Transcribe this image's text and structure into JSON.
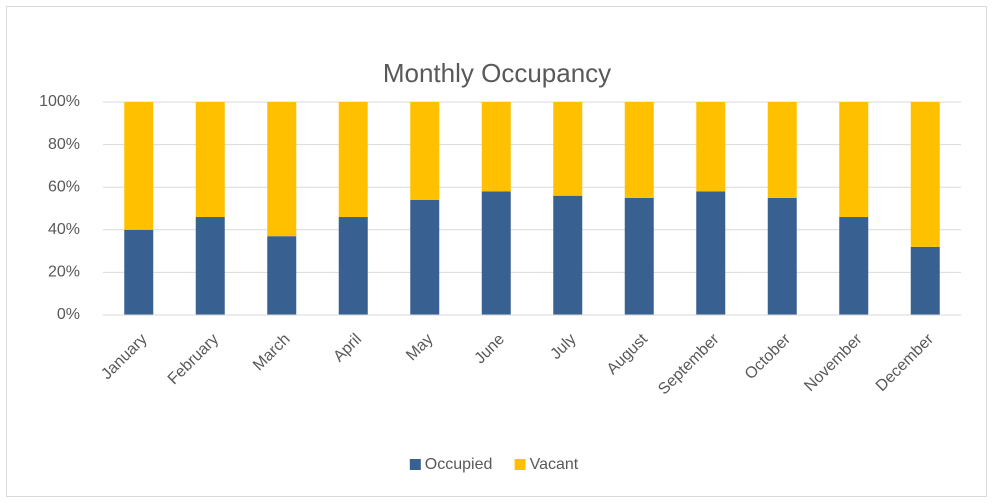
{
  "chart_data": {
    "type": "stacked-bar",
    "title": "Monthly Occupancy",
    "categories": [
      "January",
      "February",
      "March",
      "April",
      "May",
      "June",
      "July",
      "August",
      "September",
      "October",
      "November",
      "December"
    ],
    "series": [
      {
        "name": "Occupied",
        "color": "#386090",
        "values": [
          40,
          46,
          37,
          46,
          54,
          58,
          56,
          55,
          58,
          55,
          46,
          32
        ]
      },
      {
        "name": "Vacant",
        "color": "#ffc000",
        "values": [
          60,
          54,
          63,
          54,
          46,
          42,
          44,
          45,
          42,
          45,
          54,
          68
        ]
      }
    ],
    "ylim": [
      0,
      100
    ],
    "yticks": [
      {
        "value": 0,
        "label": "0%"
      },
      {
        "value": 20,
        "label": "20%"
      },
      {
        "value": 40,
        "label": "40%"
      },
      {
        "value": 60,
        "label": "60%"
      },
      {
        "value": 80,
        "label": "80%"
      },
      {
        "value": 100,
        "label": "100%"
      }
    ],
    "grid": true,
    "legend": "bottom"
  }
}
